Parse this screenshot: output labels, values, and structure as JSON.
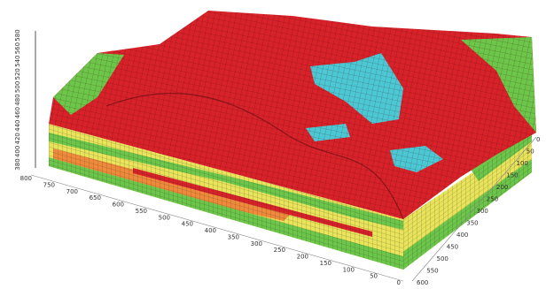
{
  "axes": {
    "vertical": [
      "580",
      "560",
      "540",
      "520",
      "500",
      "480",
      "460",
      "440",
      "420",
      "400",
      "380"
    ],
    "front": [
      "800",
      "750",
      "700",
      "650",
      "600",
      "550",
      "500",
      "450",
      "400",
      "350",
      "300",
      "250",
      "200",
      "150",
      "100",
      "50",
      "0"
    ],
    "right": [
      "0",
      "50",
      "100",
      "150",
      "200",
      "250",
      "300",
      "350",
      "400",
      "450",
      "500",
      "550",
      "600"
    ]
  }
}
